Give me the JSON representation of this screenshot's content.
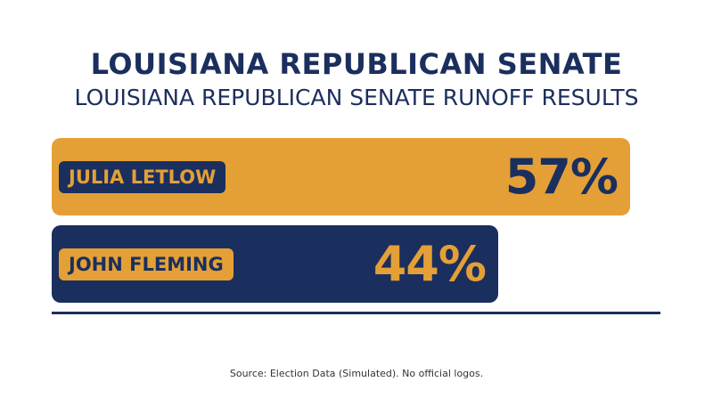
{
  "header": {
    "title": "LOUISIANA REPUBLICAN SENATE",
    "subtitle": "LOUISIANA REPUBLICAN SENATE RUNOFF RESULTS"
  },
  "footer": {
    "source": "Source: Election Data (Simulated). No official logos."
  },
  "colors": {
    "navy": "#1b2f5e",
    "gold": "#e4a036",
    "baseline": "#1b2f5e"
  },
  "chart_data": {
    "type": "bar",
    "orientation": "horizontal",
    "title": "LOUISIANA REPUBLICAN SENATE",
    "subtitle": "LOUISIANA REPUBLICAN SENATE RUNOFF RESULTS",
    "categories": [
      "JULIA LETLOW",
      "JOHN FLEMING"
    ],
    "values": [
      57,
      44
    ],
    "value_labels": [
      "57%",
      "44%"
    ],
    "xlim": [
      0,
      60
    ],
    "grid": false,
    "legend": "none",
    "bar_colors": [
      "#e4a036",
      "#1b2f5e"
    ],
    "label_colors": [
      "#1b2f5e",
      "#e4a036"
    ]
  }
}
